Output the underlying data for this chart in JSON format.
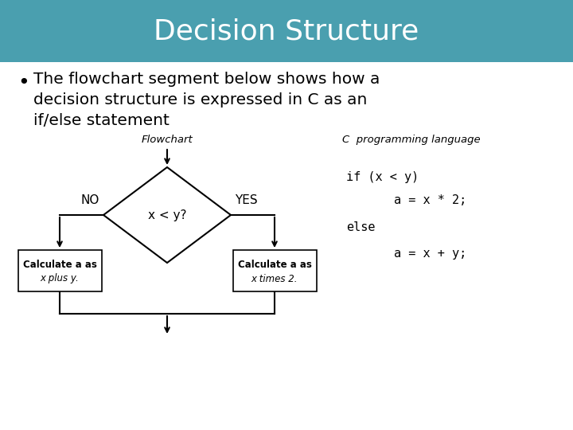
{
  "title": "Decision Structure",
  "title_bg_color": "#4a9faf",
  "title_text_color": "#ffffff",
  "bg_color": "#ffffff",
  "bullet_line1": "The flowchart segment below shows how a",
  "bullet_line2": "decision structure is expressed in C as an",
  "bullet_line3": "if/else statement",
  "flowchart_label": "Flowchart",
  "code_label": "C  programming language",
  "diamond_text": "x < y?",
  "no_label": "NO",
  "yes_label": "YES",
  "box_left_line1": "Calculate a as",
  "box_left_line2": "x plus y.",
  "box_right_line1": "Calculate a as",
  "box_right_line2": "x times 2.",
  "code_line1": "if (x < y)",
  "code_line2": "a = x * 2;",
  "code_line3": "else",
  "code_line4": "a = x + y;"
}
